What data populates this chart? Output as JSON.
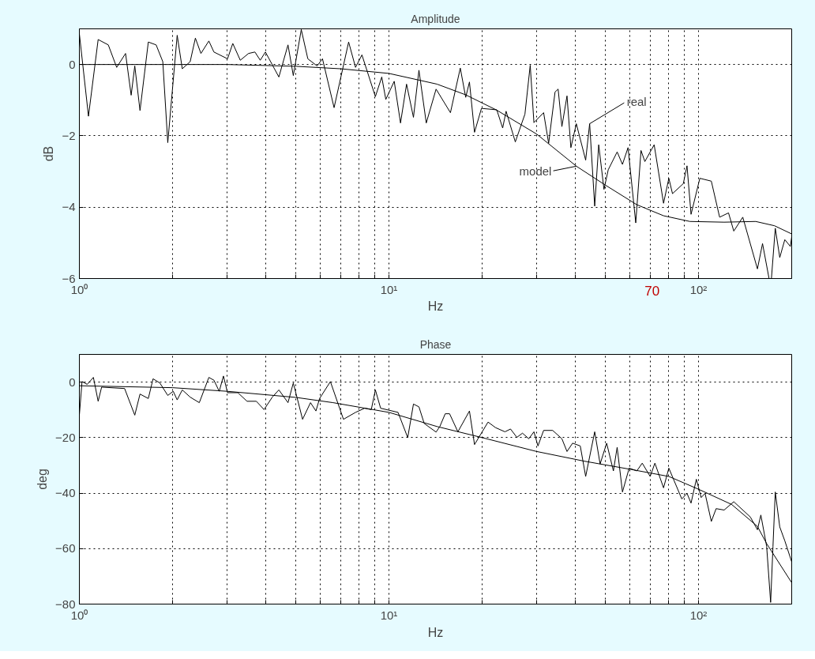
{
  "chart_data": [
    {
      "type": "line",
      "title": "Amplitude",
      "xlabel": "Hz",
      "ylabel": "dB",
      "log": "x",
      "grid": true,
      "xlim": [
        1,
        200
      ],
      "ylim": [
        -6,
        1
      ],
      "xticks": [
        {
          "value": 1,
          "label": "10⁰"
        },
        {
          "value": 2,
          "label": null
        },
        {
          "value": 3,
          "label": null
        },
        {
          "value": 4,
          "label": null
        },
        {
          "value": 5,
          "label": null
        },
        {
          "value": 6,
          "label": null
        },
        {
          "value": 7,
          "label": null
        },
        {
          "value": 8,
          "label": null
        },
        {
          "value": 9,
          "label": null
        },
        {
          "value": 10,
          "label": "10¹"
        },
        {
          "value": 20,
          "label": null
        },
        {
          "value": 30,
          "label": null
        },
        {
          "value": 40,
          "label": null
        },
        {
          "value": 50,
          "label": null
        },
        {
          "value": 60,
          "label": null
        },
        {
          "value": 70,
          "label": null
        },
        {
          "value": 80,
          "label": null
        },
        {
          "value": 90,
          "label": null
        },
        {
          "value": 100,
          "label": "10²"
        }
      ],
      "yticks": [
        -6,
        -4,
        -2,
        0
      ],
      "series": [
        {
          "color": "#000000",
          "x": [
            1.0,
            1.07,
            1.15,
            1.24,
            1.32,
            1.41,
            1.47,
            1.51,
            1.57,
            1.67,
            1.77,
            1.86,
            1.93,
            2.07,
            2.15,
            2.28,
            2.37,
            2.47,
            2.62,
            2.72,
            3.01,
            3.13,
            3.31,
            3.52,
            3.69,
            3.84,
            3.99,
            4.41,
            4.72,
            4.91,
            5.21,
            5.47,
            5.86,
            6.1,
            6.65,
            7.41,
            7.8,
            8.18,
            9.04,
            9.48,
            9.77,
            10.4,
            10.9,
            11.4,
            12.0,
            12.5,
            13.2,
            14.2,
            15.8,
            17.0,
            17.7,
            18.2,
            18.9,
            19.9,
            22.3,
            23.3,
            23.9,
            25.6,
            27.5,
            28.6,
            29.4,
            31.6,
            32.8,
            34.4,
            35.2,
            36.2,
            37.6,
            38.7,
            40.3,
            43.2,
            44.5,
            46.2,
            47.6,
            49.5,
            51.1,
            54.6,
            56.8,
            59.2,
            62.7,
            65.2,
            67.1,
            71.9,
            77.1,
            80.2,
            82.4,
            89.3,
            91.8,
            94.6,
            101,
            110,
            117,
            125,
            130,
            139,
            155,
            161,
            169,
            172,
            177,
            183,
            190,
            198,
            200
          ],
          "values": [
            0.86,
            -1.45,
            0.7,
            0.55,
            -0.08,
            0.31,
            -0.86,
            -0.04,
            -1.29,
            0.63,
            0.55,
            0.08,
            -2.19,
            0.82,
            -0.12,
            0.08,
            0.74,
            0.31,
            0.66,
            0.35,
            0.16,
            0.59,
            0.12,
            0.31,
            0.35,
            0.12,
            0.35,
            -0.35,
            0.55,
            -0.31,
            0.98,
            0.16,
            -0.04,
            0.16,
            -1.21,
            0.63,
            -0.08,
            0.27,
            -0.9,
            -0.35,
            -0.98,
            -0.47,
            -1.64,
            -0.55,
            -1.48,
            -0.16,
            -1.64,
            -0.69,
            -1.35,
            -0.1,
            -0.92,
            -0.49,
            -1.9,
            -1.23,
            -1.27,
            -1.78,
            -1.31,
            -2.17,
            -1.39,
            -0.02,
            -1.63,
            -1.35,
            -2.21,
            -0.77,
            -0.69,
            -1.74,
            -0.88,
            -2.33,
            -1.66,
            -2.68,
            -1.66,
            -3.97,
            -2.25,
            -3.5,
            -2.95,
            -2.45,
            -2.8,
            -2.33,
            -4.44,
            -2.41,
            -2.72,
            -2.25,
            -3.89,
            -3.19,
            -3.62,
            -3.34,
            -2.84,
            -4.2,
            -3.19,
            -3.27,
            -4.28,
            -4.16,
            -4.67,
            -4.28,
            -5.73,
            -5.02,
            -6.0,
            -6.0,
            -4.59,
            -5.41,
            -4.91,
            -5.1,
            -4.83
          ]
        },
        {
          "color": "#000000",
          "x": [
            1,
            3,
            5,
            7,
            10,
            14.3,
            17.7,
            22.3,
            30,
            40.3,
            50,
            63.2,
            77.1,
            93.8,
            121,
            153,
            176,
            200
          ],
          "values": [
            0,
            0,
            -0.05,
            -0.12,
            -0.25,
            -0.55,
            -0.85,
            -1.28,
            -1.95,
            -2.85,
            -3.38,
            -3.93,
            -4.24,
            -4.4,
            -4.42,
            -4.4,
            -4.52,
            -4.75
          ]
        }
      ],
      "annotations": [
        {
          "text": "real",
          "x": 44.5,
          "y": -1.66
        },
        {
          "text": "model",
          "x": 40.3,
          "y": -2.85
        },
        "70"
      ]
    },
    {
      "type": "line",
      "title": "Phase",
      "xlabel": "Hz",
      "ylabel": "deg",
      "log": "x",
      "grid": true,
      "xlim": [
        1,
        200
      ],
      "ylim": [
        -80,
        10
      ],
      "xticks": [
        {
          "value": 1,
          "label": "10⁰"
        },
        {
          "value": 2,
          "label": null
        },
        {
          "value": 3,
          "label": null
        },
        {
          "value": 4,
          "label": null
        },
        {
          "value": 5,
          "label": null
        },
        {
          "value": 6,
          "label": null
        },
        {
          "value": 7,
          "label": null
        },
        {
          "value": 8,
          "label": null
        },
        {
          "value": 9,
          "label": null
        },
        {
          "value": 10,
          "label": "10¹"
        },
        {
          "value": 20,
          "label": null
        },
        {
          "value": 30,
          "label": null
        },
        {
          "value": 40,
          "label": null
        },
        {
          "value": 50,
          "label": null
        },
        {
          "value": 60,
          "label": null
        },
        {
          "value": 70,
          "label": null
        },
        {
          "value": 80,
          "label": null
        },
        {
          "value": 90,
          "label": null
        },
        {
          "value": 100,
          "label": "10²"
        }
      ],
      "yticks": [
        -80,
        -60,
        -40,
        -20,
        0
      ],
      "series": [
        {
          "color": "#000000",
          "x": [
            1.0,
            1.02,
            1.06,
            1.11,
            1.15,
            1.18,
            1.4,
            1.51,
            1.57,
            1.67,
            1.73,
            1.82,
            1.93,
            2.01,
            2.07,
            2.15,
            2.28,
            2.44,
            2.62,
            2.72,
            2.83,
            2.92,
            3.01,
            3.25,
            3.48,
            3.73,
            3.95,
            4.2,
            4.41,
            4.72,
            4.91,
            5.26,
            5.58,
            5.81,
            5.97,
            6.47,
            7.13,
            7.8,
            8.35,
            8.77,
            9.04,
            9.4,
            10.7,
            11.5,
            12.0,
            12.5,
            13.0,
            14.2,
            14.6,
            15.2,
            15.7,
            16.7,
            18.2,
            18.9,
            20.9,
            22.1,
            23.7,
            24.7,
            25.9,
            27.0,
            28.3,
            29.4,
            30.3,
            31.6,
            33.8,
            36.2,
            37.6,
            39.2,
            41.5,
            43.2,
            46.2,
            48.1,
            50.5,
            53.1,
            54.6,
            56.8,
            59.7,
            63.2,
            65.8,
            69.8,
            72.3,
            77.1,
            80.2,
            88.3,
            91.8,
            94.6,
            98.4,
            102,
            105,
            110,
            114,
            121,
            130,
            147,
            155,
            159,
            166,
            171,
            174,
            177,
            183,
            190,
            200
          ],
          "values": [
            -11.9,
            0.2,
            -0.8,
            1.7,
            -6.9,
            -1.8,
            -2.3,
            -11.9,
            -4.3,
            -5.9,
            1.2,
            -0.3,
            -4.8,
            -3.3,
            -6.4,
            -2.8,
            -5.4,
            -7.4,
            1.7,
            0.7,
            -3.3,
            2.2,
            -3.8,
            -3.8,
            -6.9,
            -6.9,
            -9.9,
            -5.4,
            -2.8,
            -7.4,
            -0.3,
            -13.4,
            -7.4,
            -10.4,
            -5.9,
            0.2,
            -13.4,
            -10.9,
            -9.4,
            -9.9,
            -2.8,
            -9.4,
            -10.9,
            -20.0,
            -7.9,
            -8.9,
            -14.9,
            -18.0,
            -16.0,
            -11.4,
            -11.4,
            -17.9,
            -10.4,
            -22.5,
            -14.4,
            -16.4,
            -17.9,
            -16.9,
            -19.9,
            -18.4,
            -20.4,
            -17.9,
            -23.0,
            -17.4,
            -17.4,
            -20.4,
            -25.0,
            -22.0,
            -23.0,
            -34.0,
            -17.9,
            -29.5,
            -22.0,
            -32.0,
            -23.5,
            -39.6,
            -31.0,
            -32.0,
            -29.2,
            -34.0,
            -29.2,
            -38.1,
            -31.0,
            -42.1,
            -40.1,
            -43.6,
            -35.0,
            -41.6,
            -40.1,
            -50.2,
            -45.6,
            -46.1,
            -43.1,
            -48.6,
            -53.2,
            -47.9,
            -59.2,
            -79.4,
            -59.2,
            -39.6,
            -52.2,
            -57.2,
            -64.8
          ]
        },
        {
          "color": "#000000",
          "x": [
            1,
            2,
            3,
            5,
            6.6,
            10,
            14.3,
            20,
            30,
            42.8,
            60.8,
            80.2,
            100,
            128,
            155,
            166,
            200
          ],
          "values": [
            -1.3,
            -2,
            -3.3,
            -5.5,
            -7.4,
            -10.9,
            -16,
            -20,
            -25,
            -28.5,
            -31.5,
            -34,
            -38.6,
            -44.1,
            -52,
            -58.2,
            -72.3
          ]
        }
      ]
    }
  ]
}
